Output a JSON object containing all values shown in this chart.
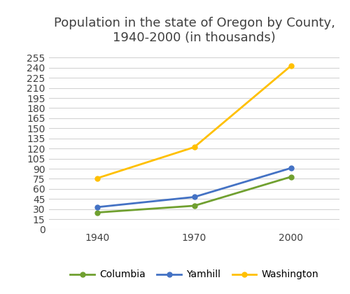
{
  "title": "Population in the state of Oregon by County,\n1940-2000 (in thousands)",
  "x_values": [
    1940,
    1970,
    2000
  ],
  "series": {
    "Columbia": {
      "values": [
        25,
        35,
        78
      ],
      "color": "#70a030",
      "marker": "o"
    },
    "Yamhill": {
      "values": [
        33,
        48,
        91
      ],
      "color": "#4472c4",
      "marker": "o"
    },
    "Washington": {
      "values": [
        76,
        122,
        243
      ],
      "color": "#ffc000",
      "marker": "o"
    }
  },
  "yticks": [
    0,
    15,
    30,
    45,
    60,
    75,
    90,
    105,
    120,
    135,
    150,
    165,
    180,
    195,
    210,
    225,
    240,
    255
  ],
  "ylim": [
    0,
    262
  ],
  "xlim": [
    1925,
    2015
  ],
  "xticks": [
    1940,
    1970,
    2000
  ],
  "grid_color": "#d3d3d3",
  "background_color": "#ffffff",
  "title_fontsize": 13,
  "tick_fontsize": 10,
  "legend_fontsize": 10,
  "title_color": "#404040",
  "tick_color": "#404040"
}
